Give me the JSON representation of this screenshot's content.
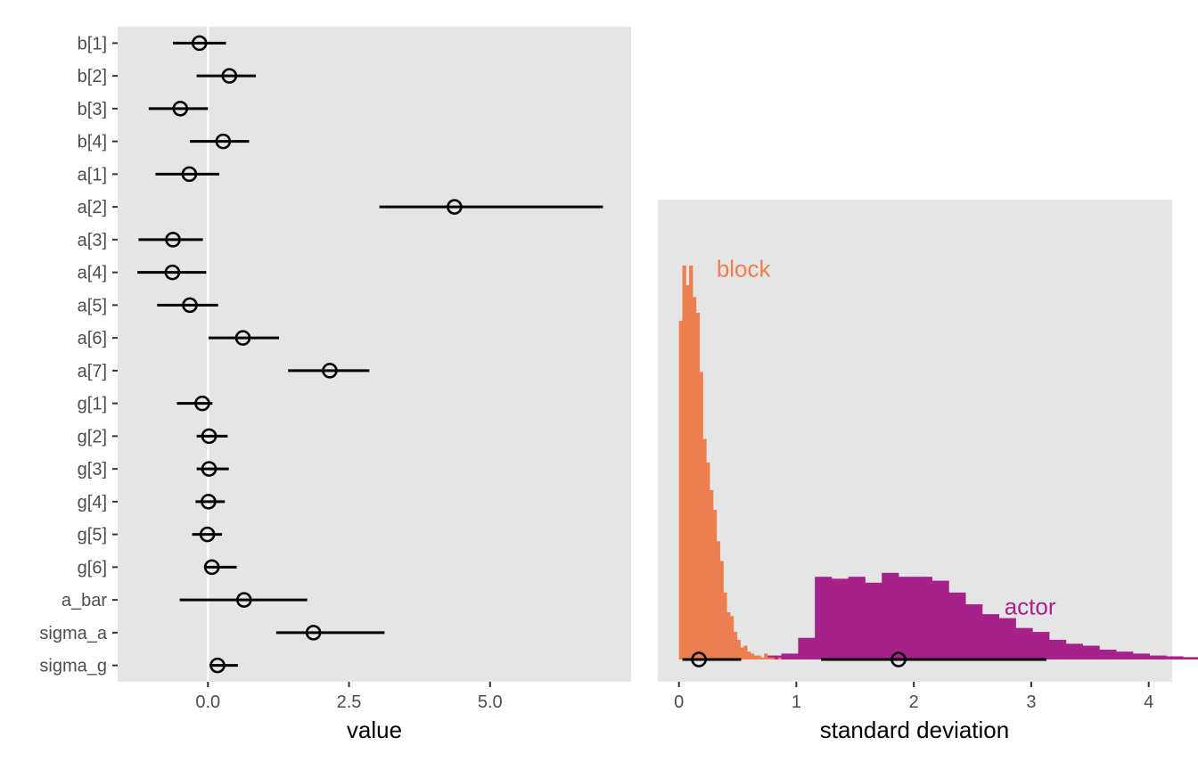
{
  "colors": {
    "panel_bg": "#e5e5e5",
    "zero_line": "#ffffff",
    "interval": "#000000",
    "block": "#ec7e4f",
    "actor": "#a6228a"
  },
  "chart_data": [
    {
      "type": "scatter",
      "subtype": "coefficient interval plot",
      "xlabel": "value",
      "ylabel": "",
      "xlim": [
        -1.6,
        7.5
      ],
      "xticks": [
        0,
        2.5,
        5
      ],
      "xtick_labels": [
        "0.0",
        "2.5",
        "5.0"
      ],
      "reference_line_x": 0,
      "grid": false,
      "params": [
        {
          "name": "b[1]",
          "mean": -0.15,
          "lo": -0.62,
          "hi": 0.32
        },
        {
          "name": "b[2]",
          "mean": 0.38,
          "lo": -0.2,
          "hi": 0.85
        },
        {
          "name": "b[3]",
          "mean": -0.49,
          "lo": -1.05,
          "hi": 0.0
        },
        {
          "name": "b[4]",
          "mean": 0.27,
          "lo": -0.32,
          "hi": 0.73
        },
        {
          "name": "a[1]",
          "mean": -0.33,
          "lo": -0.93,
          "hi": 0.2
        },
        {
          "name": "a[2]",
          "mean": 4.37,
          "lo": 3.04,
          "hi": 7.0
        },
        {
          "name": "a[3]",
          "mean": -0.62,
          "lo": -1.23,
          "hi": -0.09
        },
        {
          "name": "a[4]",
          "mean": -0.63,
          "lo": -1.25,
          "hi": -0.03
        },
        {
          "name": "a[5]",
          "mean": -0.32,
          "lo": -0.9,
          "hi": 0.18
        },
        {
          "name": "a[6]",
          "mean": 0.62,
          "lo": 0.01,
          "hi": 1.26
        },
        {
          "name": "a[7]",
          "mean": 2.16,
          "lo": 1.42,
          "hi": 2.86
        },
        {
          "name": "g[1]",
          "mean": -0.1,
          "lo": -0.55,
          "hi": 0.08
        },
        {
          "name": "g[2]",
          "mean": 0.02,
          "lo": -0.2,
          "hi": 0.35
        },
        {
          "name": "g[3]",
          "mean": 0.02,
          "lo": -0.2,
          "hi": 0.37
        },
        {
          "name": "g[4]",
          "mean": 0.01,
          "lo": -0.22,
          "hi": 0.3
        },
        {
          "name": "g[5]",
          "mean": -0.01,
          "lo": -0.28,
          "hi": 0.25
        },
        {
          "name": "g[6]",
          "mean": 0.07,
          "lo": -0.07,
          "hi": 0.51
        },
        {
          "name": "a_bar",
          "mean": 0.64,
          "lo": -0.5,
          "hi": 1.76
        },
        {
          "name": "sigma_a",
          "mean": 1.87,
          "lo": 1.21,
          "hi": 3.13
        },
        {
          "name": "sigma_g",
          "mean": 0.17,
          "lo": 0.03,
          "hi": 0.53
        }
      ]
    },
    {
      "type": "histogram",
      "xlabel": "standard deviation",
      "ylabel": "",
      "xlim": [
        -0.18,
        4.2
      ],
      "ylim": [
        0,
        1
      ],
      "xticks": [
        0,
        1,
        2,
        3,
        4
      ],
      "xtick_labels": [
        "0",
        "1",
        "2",
        "3",
        "4"
      ],
      "grid": false,
      "series": [
        {
          "name": "block",
          "color": "#ec7e4f",
          "bin_width": 0.029,
          "x_start": 0.0,
          "density": [
            0.86,
            1.0,
            0.95,
            1.0,
            0.92,
            0.88,
            0.73,
            0.56,
            0.5,
            0.43,
            0.38,
            0.3,
            0.25,
            0.17,
            0.12,
            0.11,
            0.07,
            0.05,
            0.03,
            0.035,
            0.02,
            0.015,
            0.01,
            0.01,
            0.005,
            0.015,
            0.005,
            0.005,
            0.0,
            0.005
          ],
          "interval": {
            "mean": 0.17,
            "lo": 0.03,
            "hi": 0.53
          }
        },
        {
          "name": "actor",
          "color": "#a6228a",
          "bin_start": 0.73,
          "bin_width": 0.1425,
          "density": [
            0.01,
            0.015,
            0.055,
            0.21,
            0.205,
            0.21,
            0.195,
            0.22,
            0.21,
            0.21,
            0.2,
            0.17,
            0.14,
            0.115,
            0.105,
            0.08,
            0.07,
            0.05,
            0.04,
            0.035,
            0.025,
            0.02,
            0.015,
            0.01,
            0.008,
            0.006,
            0.004
          ],
          "interval": {
            "mean": 1.87,
            "lo": 1.21,
            "hi": 3.13
          }
        }
      ],
      "annotations": [
        {
          "text": "block",
          "x": 0.55,
          "y_frac": 0.85
        },
        {
          "text": "actor",
          "x": 2.99,
          "y_frac": 0.115
        }
      ]
    }
  ]
}
